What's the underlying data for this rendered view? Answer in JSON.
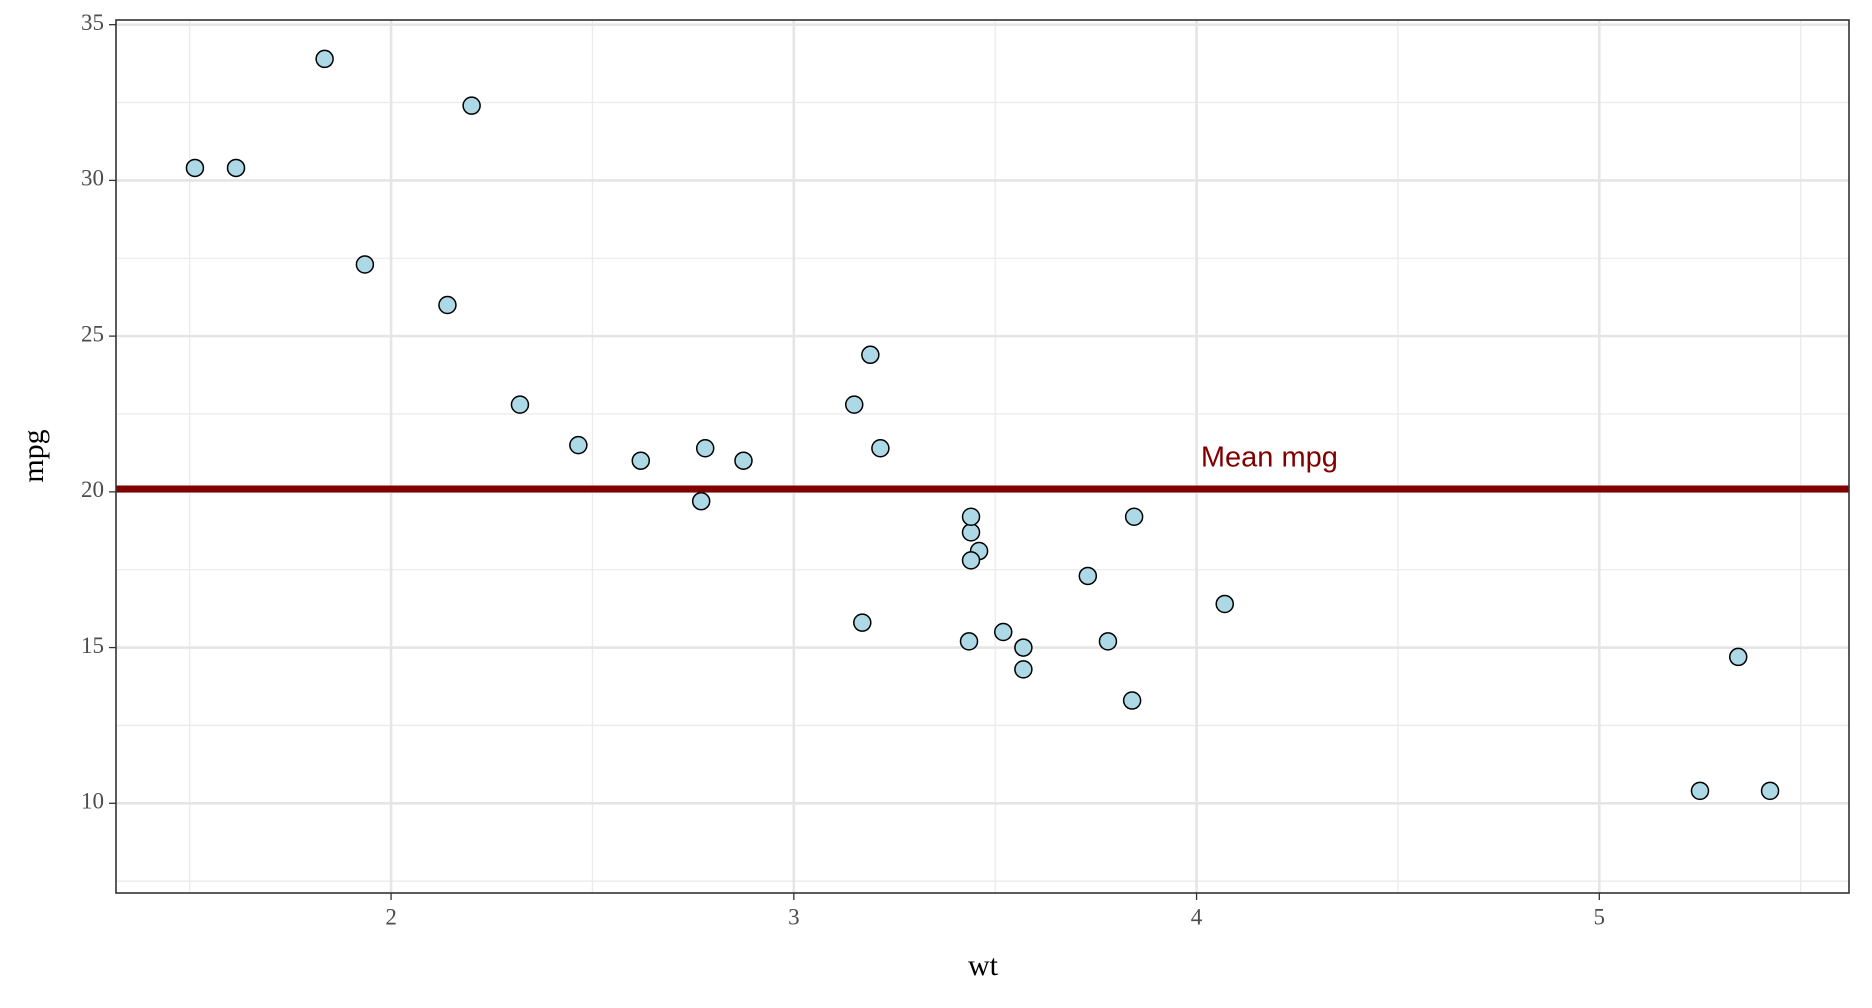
{
  "chart_data": {
    "type": "scatter",
    "x_label": "wt",
    "y_label": "mpg",
    "x": [
      2.62,
      2.875,
      2.32,
      3.215,
      3.44,
      3.46,
      3.57,
      3.19,
      3.15,
      3.44,
      3.44,
      4.07,
      3.73,
      3.78,
      5.25,
      5.424,
      5.345,
      2.2,
      1.615,
      1.835,
      2.465,
      3.52,
      3.435,
      3.84,
      3.845,
      1.935,
      2.14,
      1.513,
      3.17,
      2.77,
      3.57,
      2.78
    ],
    "y": [
      21.0,
      21.0,
      22.8,
      21.4,
      18.7,
      18.1,
      14.3,
      24.4,
      22.8,
      19.2,
      17.8,
      16.4,
      17.3,
      15.2,
      10.4,
      10.4,
      14.7,
      32.4,
      30.4,
      33.9,
      21.5,
      15.5,
      15.2,
      13.3,
      19.2,
      27.3,
      26.0,
      30.4,
      15.8,
      19.7,
      15.0,
      21.4
    ],
    "color": "#add8e6",
    "xlim": [
      1.317,
      5.62
    ],
    "ylim": [
      7.12,
      35.15
    ],
    "xticks": [
      2,
      3,
      4,
      5
    ],
    "yticks": [
      10,
      15,
      20,
      25,
      30,
      35
    ],
    "x_minor_grid": [
      1.5,
      2.5,
      3.5,
      4.5,
      5.5
    ],
    "y_minor_grid": [
      7.5,
      12.5,
      17.5,
      22.5,
      27.5,
      32.5
    ],
    "grid": true,
    "hline": {
      "value": 20.09,
      "label": "Mean mpg",
      "color": "#800000"
    }
  }
}
